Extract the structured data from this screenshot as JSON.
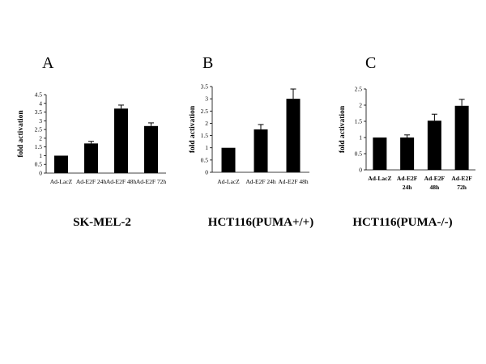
{
  "chart_data": [
    {
      "type": "bar",
      "panel": "A",
      "cell_line": "SK-MEL-2",
      "ylabel": "fold activation",
      "ylim": [
        0,
        4.5
      ],
      "yticks": [
        "0",
        "0.5",
        "1",
        "1.5",
        "2",
        "2.5",
        "3",
        "3.5",
        "4",
        "4.5"
      ],
      "categories": [
        [
          "Ad-LacZ"
        ],
        [
          "Ad-E2F 24h"
        ],
        [
          "Ad-E2F 48h"
        ],
        [
          "Ad-E2F 72h"
        ]
      ],
      "values": [
        1.0,
        1.7,
        3.7,
        2.7
      ],
      "errors": [
        0,
        0.12,
        0.2,
        0.18
      ]
    },
    {
      "type": "bar",
      "panel": "B",
      "cell_line": "HCT116(PUMA+/+)",
      "ylabel": "fold activation",
      "ylim": [
        0,
        3.5
      ],
      "yticks": [
        "0",
        "0.5",
        "1",
        "1.5",
        "2",
        "2.5",
        "3",
        "3.5"
      ],
      "categories": [
        [
          "Ad-LacZ"
        ],
        [
          "Ad-E2F 24h"
        ],
        [
          "Ad-E2F  48h"
        ]
      ],
      "values": [
        1.0,
        1.75,
        3.0
      ],
      "errors": [
        0,
        0.2,
        0.4
      ]
    },
    {
      "type": "bar",
      "panel": "C",
      "cell_line": "HCT116(PUMA-/-)",
      "ylabel": "fold activation",
      "ylim": [
        0,
        2.5
      ],
      "yticks": [
        "0",
        "0.5",
        "1",
        "1.5",
        "2",
        "2.5"
      ],
      "categories": [
        [
          "Ad-LacZ"
        ],
        [
          "Ad-E2F",
          "24h"
        ],
        [
          "Ad-E2F",
          "48h"
        ],
        [
          "Ad-E2F",
          "72h"
        ]
      ],
      "values": [
        1.0,
        1.0,
        1.52,
        1.98
      ],
      "errors": [
        0,
        0.08,
        0.2,
        0.2
      ]
    }
  ]
}
